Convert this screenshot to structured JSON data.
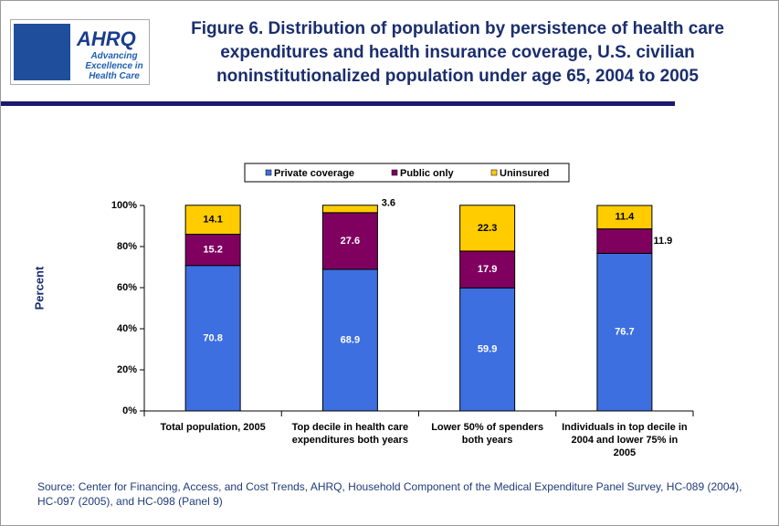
{
  "logo": {
    "name": "AHRQ",
    "tagline": "Advancing Excellence in Health Care"
  },
  "chart_data": {
    "type": "stacked-bar",
    "title": "Figure 6. Distribution of population by persistence of health care expenditures and health insurance coverage, U.S. civilian noninstitutionalized population under age 65, 2004 to 2005",
    "y_label": "Percent",
    "categories": [
      "Total population, 2005",
      "Top decile in health care expenditures both years",
      "Lower 50% of spenders both years",
      "Individuals in top decile in 2004 and lower 75% in 2005"
    ],
    "series": [
      {
        "name": "Private coverage",
        "color": "#3d6fe0",
        "values": [
          70.8,
          68.9,
          59.9,
          76.7
        ]
      },
      {
        "name": "Public only",
        "color": "#800060",
        "values": [
          15.2,
          27.6,
          17.9,
          11.9
        ]
      },
      {
        "name": "Uninsured",
        "color": "#ffcc00",
        "values": [
          14.1,
          3.6,
          22.3,
          11.4
        ]
      }
    ],
    "ylim": [
      0,
      100
    ],
    "yticks": [
      {
        "value": 0,
        "label": "0%"
      },
      {
        "value": 20,
        "label": "20%"
      },
      {
        "value": 40,
        "label": "40%"
      },
      {
        "value": 60,
        "label": "60%"
      },
      {
        "value": 80,
        "label": "80%"
      },
      {
        "value": 100,
        "label": "100%"
      }
    ],
    "legend": "top",
    "source": "Source: Center for Financing, Access, and Cost Trends, AHRQ, Household Component of the Medical Expenditure Panel Survey, HC-089 (2004), HC-097 (2005), and HC-098 (Panel 9)"
  }
}
